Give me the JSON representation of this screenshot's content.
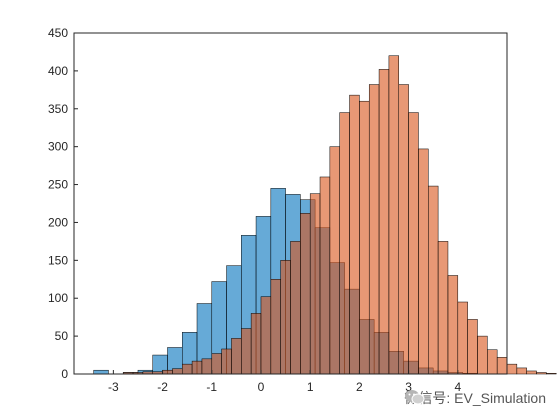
{
  "chart_data": {
    "type": "bar",
    "subtype": "overlapping-histogram",
    "title": "",
    "xlabel": "",
    "ylabel": "",
    "xlim": [
      -3.8,
      5.0
    ],
    "ylim": [
      0,
      450
    ],
    "xticks": [
      -3,
      -2,
      -1,
      0,
      1,
      2,
      3,
      4
    ],
    "yticks": [
      0,
      50,
      100,
      150,
      200,
      250,
      300,
      350,
      400,
      450
    ],
    "grid": false,
    "series": [
      {
        "color": "#0072BD",
        "bin_width": 0.3,
        "bin_start": -3.4,
        "values": [
          5,
          0,
          2,
          5,
          25,
          35,
          55,
          93,
          122,
          143,
          183,
          208,
          245,
          237,
          230,
          193,
          147,
          112,
          72,
          55,
          30,
          17,
          8,
          4,
          2,
          1
        ]
      },
      {
        "color": "#D95319",
        "bin_width": 0.2,
        "bin_start": -2.8,
        "values": [
          2,
          2,
          3,
          3,
          5,
          7,
          13,
          17,
          20,
          27,
          33,
          47,
          60,
          80,
          102,
          125,
          150,
          175,
          212,
          238,
          260,
          300,
          345,
          368,
          360,
          382,
          402,
          420,
          382,
          345,
          297,
          248,
          175,
          130,
          95,
          72,
          50,
          32,
          22,
          13,
          8,
          4,
          2,
          1
        ]
      }
    ]
  },
  "watermark": {
    "icon": "wechat-icon",
    "text": "微信号: EV_Simulation"
  }
}
